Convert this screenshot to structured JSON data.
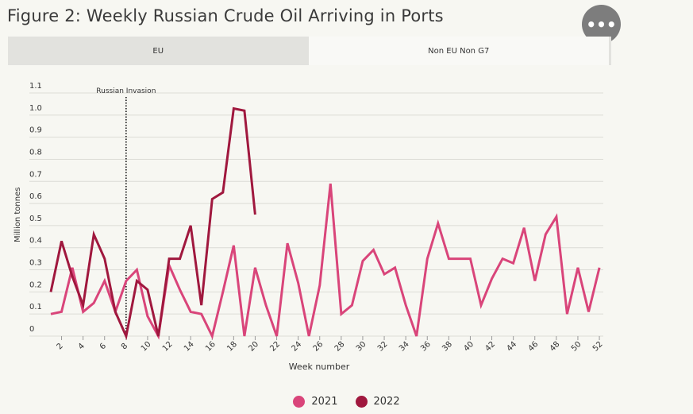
{
  "title": "Figure 2: Weekly Russian Crude Oil Arriving in Ports",
  "menu_icon": "ellipsis-icon",
  "tabs": [
    {
      "label": "EU",
      "active": false
    },
    {
      "label": "Non EU Non G7",
      "active": true
    }
  ],
  "chart_data": {
    "type": "line",
    "xlabel": "Week number",
    "ylabel": "Million tonnes",
    "ylim": [
      0,
      1.1
    ],
    "xlim": [
      1,
      52
    ],
    "yticks": [
      "0",
      "0.1",
      "0.2",
      "0.3",
      "0.4",
      "0.5",
      "0.6",
      "0.7",
      "0.8",
      "0.9",
      "1.0",
      "1.1"
    ],
    "xticks": [
      2,
      4,
      6,
      8,
      10,
      12,
      14,
      16,
      18,
      20,
      22,
      24,
      26,
      28,
      30,
      32,
      34,
      36,
      38,
      40,
      42,
      44,
      46,
      48,
      50,
      52
    ],
    "annotation": {
      "label": "Russian Invasion",
      "x": 8
    },
    "grid": true,
    "legend_position": "bottom",
    "series": [
      {
        "name": "2021",
        "color": "#d9457a",
        "x": [
          1,
          2,
          3,
          4,
          5,
          6,
          7,
          8,
          9,
          10,
          11,
          12,
          13,
          14,
          15,
          16,
          17,
          18,
          19,
          20,
          21,
          22,
          23,
          24,
          25,
          26,
          27,
          28,
          29,
          30,
          31,
          32,
          33,
          34,
          35,
          36,
          37,
          38,
          39,
          40,
          41,
          42,
          43,
          44,
          45,
          46,
          47,
          48,
          49,
          50,
          51,
          52
        ],
        "values": [
          0.1,
          0.11,
          0.31,
          0.11,
          0.15,
          0.25,
          0.11,
          0.25,
          0.3,
          0.09,
          0,
          0.32,
          0.21,
          0.11,
          0.1,
          0,
          0.2,
          0.41,
          0,
          0.31,
          0.14,
          0,
          0.42,
          0.24,
          0,
          0.23,
          0.69,
          0.1,
          0.14,
          0.34,
          0.39,
          0.28,
          0.31,
          0.14,
          0,
          0.35,
          0.51,
          0.35,
          0.35,
          0.35,
          0.14,
          0.26,
          0.35,
          0.33,
          0.49,
          0.25,
          0.46,
          0.54,
          0.1,
          0.31,
          0.11,
          0.31
        ]
      },
      {
        "name": "2022",
        "color": "#a0183e",
        "x": [
          1,
          2,
          3,
          4,
          5,
          6,
          7,
          8,
          9,
          10,
          11,
          12,
          13,
          14,
          15,
          16,
          17,
          18,
          19,
          20
        ],
        "values": [
          0.2,
          0.43,
          0.27,
          0.14,
          0.46,
          0.35,
          0.11,
          0,
          0.25,
          0.21,
          0,
          0.35,
          0.35,
          0.5,
          0.14,
          0.62,
          0.65,
          1.03,
          1.02,
          0.55
        ]
      }
    ]
  }
}
